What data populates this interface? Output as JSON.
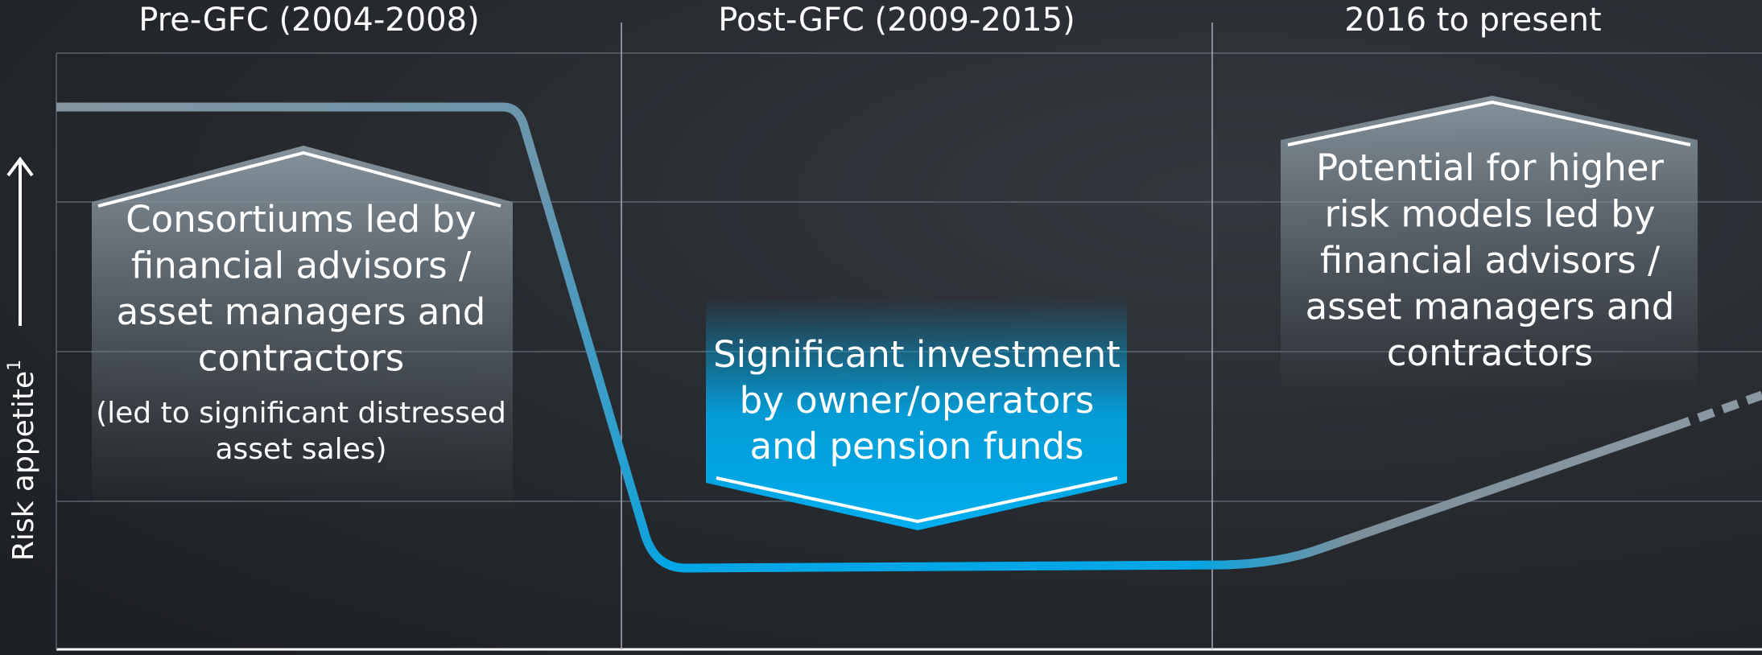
{
  "periods": [
    "Pre-GFC (2004-2008)",
    "Post-GFC (2009-2015)",
    "2016 to present"
  ],
  "y_axis_label": {
    "text": "Risk appetite",
    "superscript": "1"
  },
  "boxes": [
    {
      "lines": [
        "Consortiums led by",
        "financial advisors /",
        "asset managers and",
        "contractors"
      ],
      "note_lines": [
        "(led to significant distressed",
        "asset sales)"
      ]
    },
    {
      "lines": [
        "Significant investment",
        "by owner/operators",
        "and pension funds"
      ]
    },
    {
      "lines": [
        "Potential for higher",
        "risk models led by",
        "financial advisors /",
        "asset managers and",
        "contractors"
      ]
    }
  ]
}
